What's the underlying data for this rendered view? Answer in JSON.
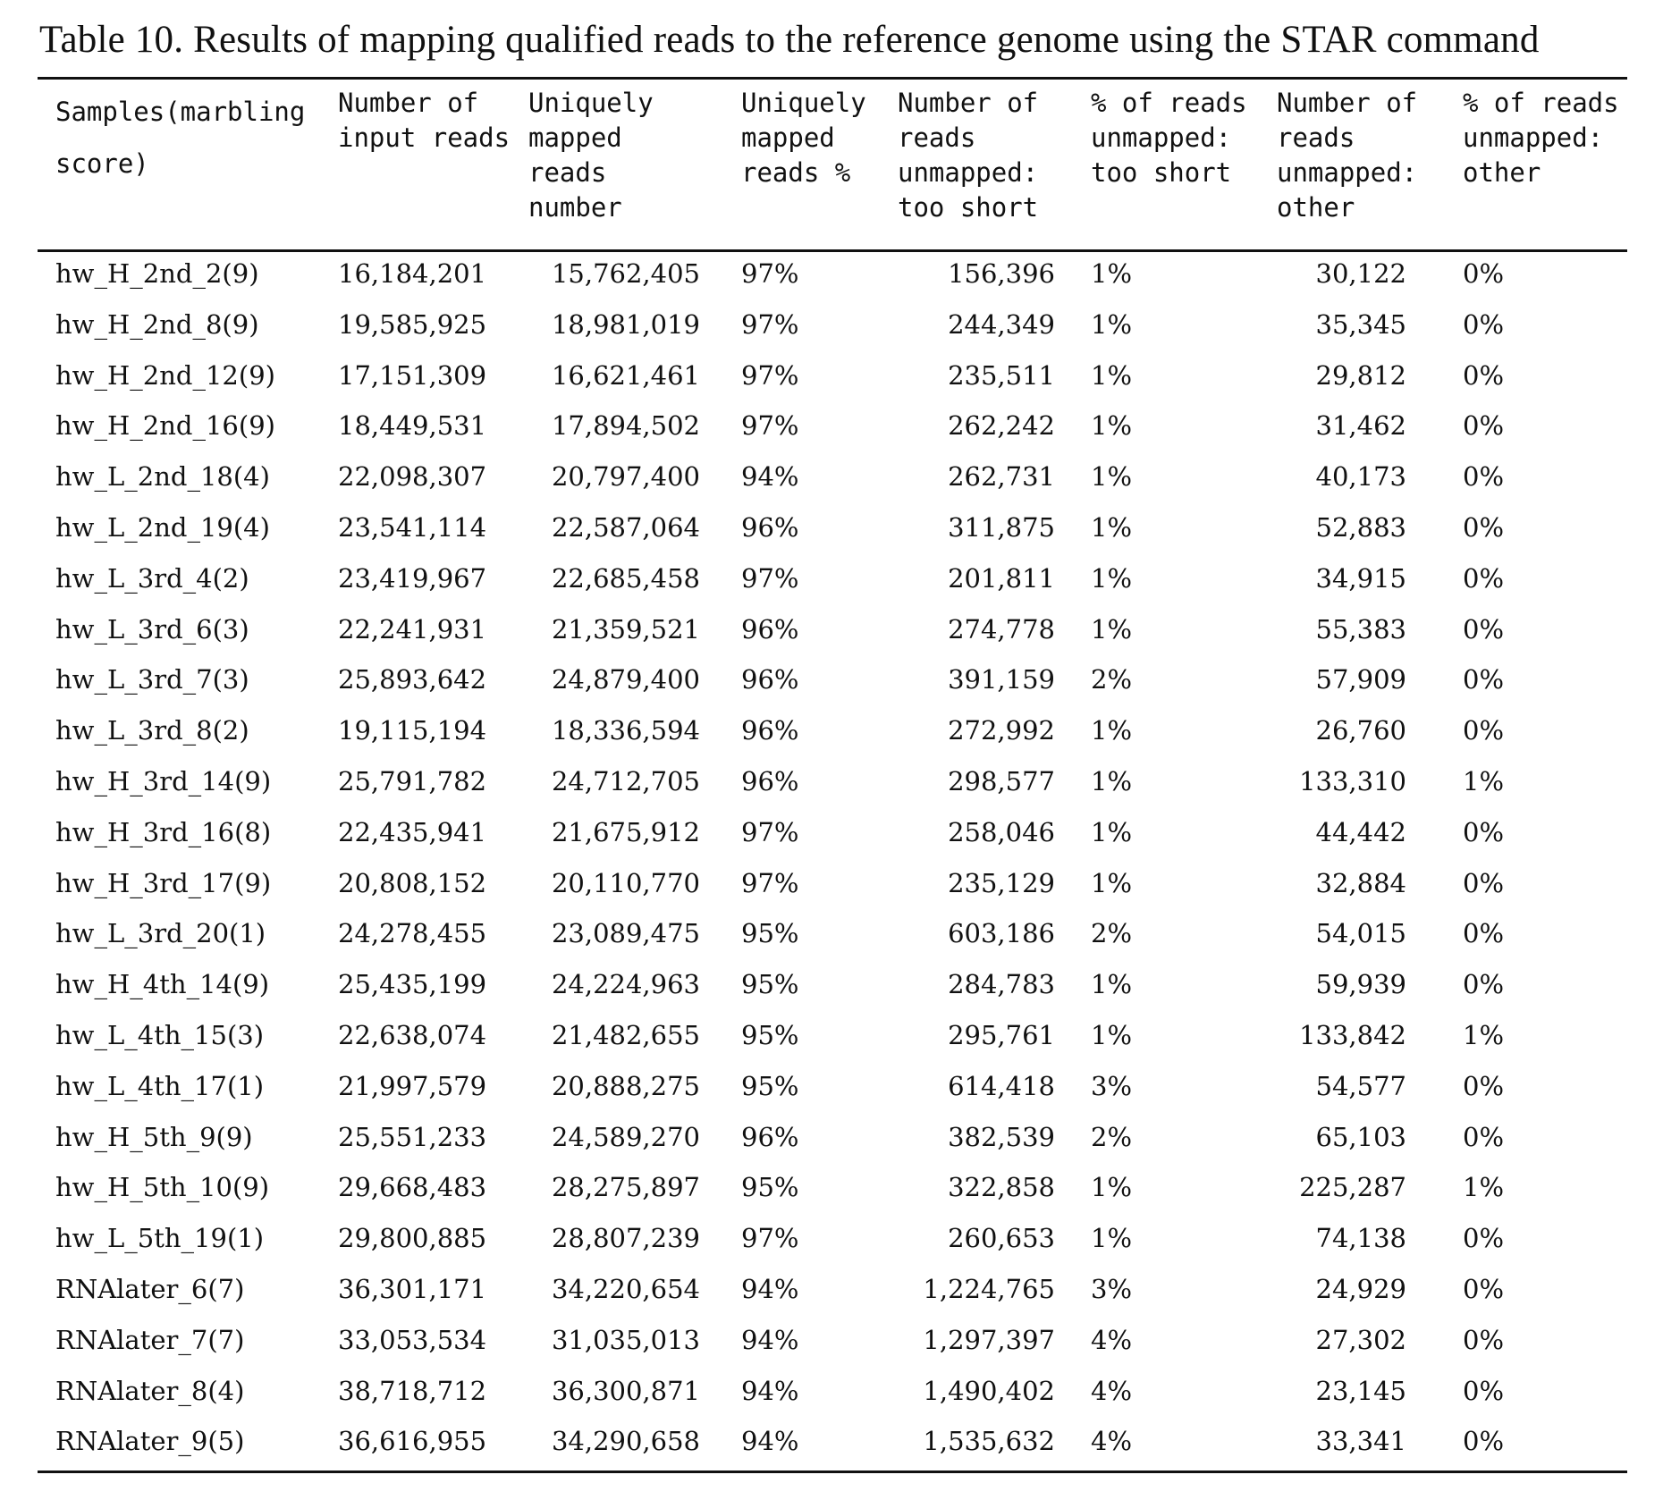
{
  "caption": "Table 10. Results of mapping qualified reads to the reference genome using the STAR command",
  "columns": [
    "Samples(marbling\nscore)",
    "Number of\ninput reads",
    "Uniquely\nmapped\nreads\nnumber",
    "Uniquely\nmapped\nreads %",
    "Number of\nreads\nunmapped:\ntoo short",
    "% of reads\nunmapped:\ntoo short",
    "Number of\nreads\nunmapped:\nother",
    "% of reads\nunmapped:\nother"
  ],
  "rows": [
    [
      "hw_H_2nd_2(9)",
      "16,184,201",
      "15,762,405",
      "97%",
      "156,396",
      "1%",
      "30,122",
      "0%"
    ],
    [
      "hw_H_2nd_8(9)",
      "19,585,925",
      "18,981,019",
      "97%",
      "244,349",
      "1%",
      "35,345",
      "0%"
    ],
    [
      "hw_H_2nd_12(9)",
      "17,151,309",
      "16,621,461",
      "97%",
      "235,511",
      "1%",
      "29,812",
      "0%"
    ],
    [
      "hw_H_2nd_16(9)",
      "18,449,531",
      "17,894,502",
      "97%",
      "262,242",
      "1%",
      "31,462",
      "0%"
    ],
    [
      "hw_L_2nd_18(4)",
      "22,098,307",
      "20,797,400",
      "94%",
      "262,731",
      "1%",
      "40,173",
      "0%"
    ],
    [
      "hw_L_2nd_19(4)",
      "23,541,114",
      "22,587,064",
      "96%",
      "311,875",
      "1%",
      "52,883",
      "0%"
    ],
    [
      "hw_L_3rd_4(2)",
      "23,419,967",
      "22,685,458",
      "97%",
      "201,811",
      "1%",
      "34,915",
      "0%"
    ],
    [
      "hw_L_3rd_6(3)",
      "22,241,931",
      "21,359,521",
      "96%",
      "274,778",
      "1%",
      "55,383",
      "0%"
    ],
    [
      "hw_L_3rd_7(3)",
      "25,893,642",
      "24,879,400",
      "96%",
      "391,159",
      "2%",
      "57,909",
      "0%"
    ],
    [
      "hw_L_3rd_8(2)",
      "19,115,194",
      "18,336,594",
      "96%",
      "272,992",
      "1%",
      "26,760",
      "0%"
    ],
    [
      "hw_H_3rd_14(9)",
      "25,791,782",
      "24,712,705",
      "96%",
      "298,577",
      "1%",
      "133,310",
      "1%"
    ],
    [
      "hw_H_3rd_16(8)",
      "22,435,941",
      "21,675,912",
      "97%",
      "258,046",
      "1%",
      "44,442",
      "0%"
    ],
    [
      "hw_H_3rd_17(9)",
      "20,808,152",
      "20,110,770",
      "97%",
      "235,129",
      "1%",
      "32,884",
      "0%"
    ],
    [
      "hw_L_3rd_20(1)",
      "24,278,455",
      "23,089,475",
      "95%",
      "603,186",
      "2%",
      "54,015",
      "0%"
    ],
    [
      "hw_H_4th_14(9)",
      "25,435,199",
      "24,224,963",
      "95%",
      "284,783",
      "1%",
      "59,939",
      "0%"
    ],
    [
      "hw_L_4th_15(3)",
      "22,638,074",
      "21,482,655",
      "95%",
      "295,761",
      "1%",
      "133,842",
      "1%"
    ],
    [
      "hw_L_4th_17(1)",
      "21,997,579",
      "20,888,275",
      "95%",
      "614,418",
      "3%",
      "54,577",
      "0%"
    ],
    [
      "hw_H_5th_9(9)",
      "25,551,233",
      "24,589,270",
      "96%",
      "382,539",
      "2%",
      "65,103",
      "0%"
    ],
    [
      "hw_H_5th_10(9)",
      "29,668,483",
      "28,275,897",
      "95%",
      "322,858",
      "1%",
      "225,287",
      "1%"
    ],
    [
      "hw_L_5th_19(1)",
      "29,800,885",
      "28,807,239",
      "97%",
      "260,653",
      "1%",
      "74,138",
      "0%"
    ],
    [
      "RNAlater_6(7)",
      "36,301,171",
      "34,220,654",
      "94%",
      "1,224,765",
      "3%",
      "24,929",
      "0%"
    ],
    [
      "RNAlater_7(7)",
      "33,053,534",
      "31,035,013",
      "94%",
      "1,297,397",
      "4%",
      "27,302",
      "0%"
    ],
    [
      "RNAlater_8(4)",
      "38,718,712",
      "36,300,871",
      "94%",
      "1,490,402",
      "4%",
      "23,145",
      "0%"
    ],
    [
      "RNAlater_9(5)",
      "36,616,955",
      "34,290,658",
      "94%",
      "1,535,632",
      "4%",
      "33,341",
      "0%"
    ]
  ]
}
